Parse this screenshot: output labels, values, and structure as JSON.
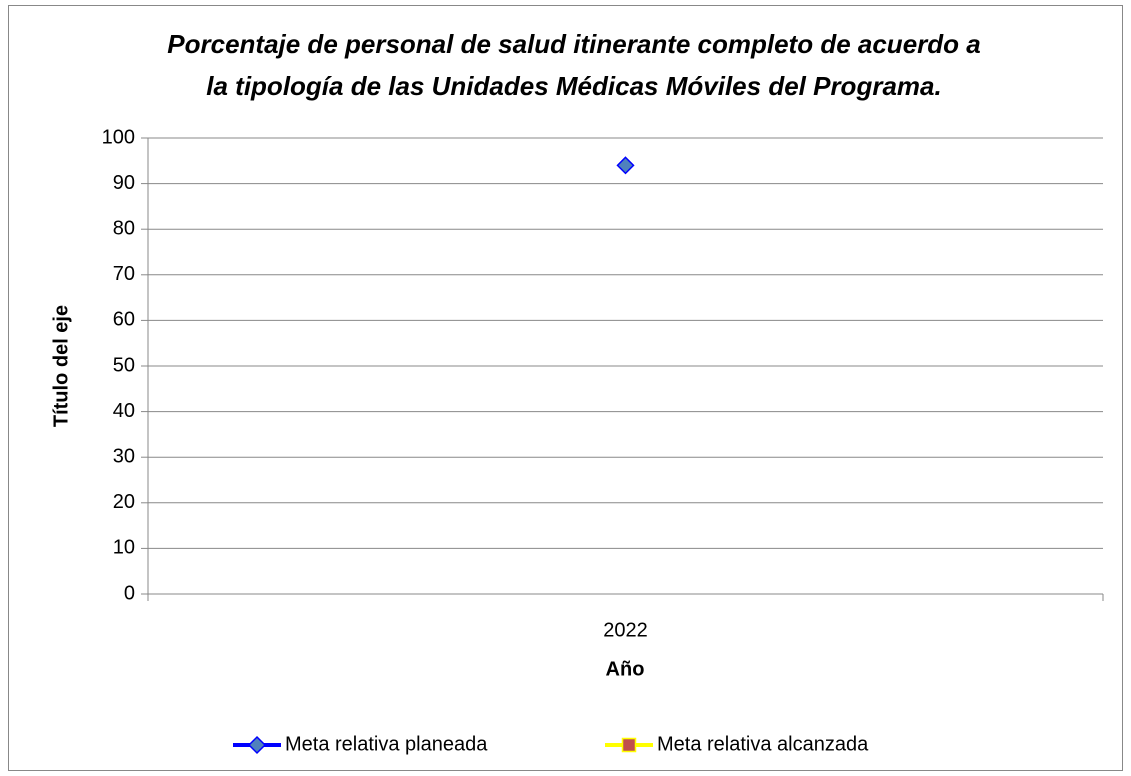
{
  "chart_data": {
    "type": "line",
    "title": [
      "Porcentaje de personal de salud itinerante completo de acuerdo a",
      "la tipología de las Unidades Médicas Móviles del Programa."
    ],
    "xlabel": "Año",
    "ylabel": "Título del eje",
    "categories": [
      "2022"
    ],
    "series": [
      {
        "name": "Meta relativa planeada",
        "color": "#0000ff",
        "marker": "diamond",
        "marker_color": "#4f81bd",
        "values": [
          94
        ]
      },
      {
        "name": "Meta relativa alcanzada",
        "color": "#ffff00",
        "marker": "square",
        "marker_color": "#c0504d",
        "values": [
          null
        ]
      }
    ],
    "ylim": [
      0,
      100
    ],
    "yticks": [
      0,
      10,
      20,
      30,
      40,
      50,
      60,
      70,
      80,
      90,
      100
    ],
    "grid": true,
    "legend": "bottom"
  }
}
